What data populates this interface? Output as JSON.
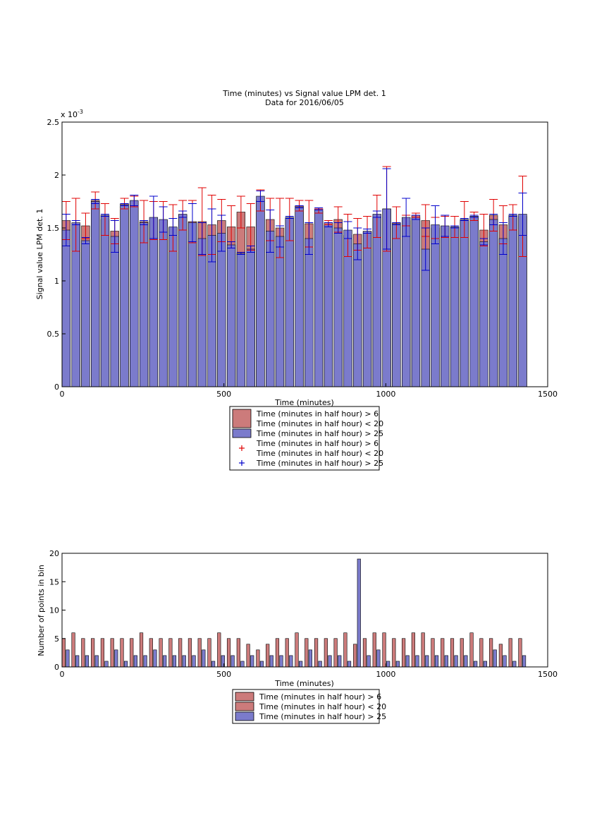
{
  "chart_data": [
    {
      "type": "bar",
      "title": "Time (minutes) vs Signal value LPM det. 1",
      "subtitle": "Data for 2016/06/05",
      "xlabel": "Time (minutes)",
      "ylabel": "Signal value LPM det. 1",
      "exponent_label": "x 10",
      "exponent_power": "-3",
      "xlim": [
        0,
        1500
      ],
      "ylim": [
        0,
        2.5
      ],
      "xticks": [
        "0",
        "500",
        "1000",
        "1500"
      ],
      "yticks": [
        "0",
        "0.5",
        "1",
        "1.5",
        "2",
        "2.5"
      ],
      "grid": false,
      "legend_position": "below",
      "colors": {
        "series1": "#cc7b7b",
        "series2": "#7b7bcc",
        "err1": "#e00000",
        "err2": "#0000cc"
      },
      "legend": [
        {
          "lines": [
            "Time (minutes in half hour) > 6",
            "Time (minutes in half hour) < 20"
          ],
          "symbol": "patch",
          "color": "#cc7b7b"
        },
        {
          "lines": [
            "Time (minutes in half hour) > 25"
          ],
          "symbol": "patch",
          "color": "#7b7bcc"
        },
        {
          "lines": [
            "Time (minutes in half hour) > 6",
            "Time (minutes in half hour) < 20"
          ],
          "symbol": "plus",
          "color": "#e00000"
        },
        {
          "lines": [
            "Time (minutes in half hour) > 25"
          ],
          "symbol": "plus",
          "color": "#0000cc"
        }
      ],
      "x": [
        0,
        30,
        60,
        90,
        120,
        150,
        180,
        210,
        240,
        270,
        300,
        330,
        360,
        390,
        420,
        450,
        480,
        510,
        540,
        570,
        600,
        630,
        660,
        690,
        720,
        750,
        780,
        810,
        840,
        870,
        900,
        930,
        960,
        990,
        1020,
        1050,
        1080,
        1110,
        1140,
        1170,
        1200,
        1230,
        1260,
        1290,
        1320,
        1350,
        1380,
        1410
      ],
      "series": [
        {
          "values": [
            1.57,
            1.53,
            1.52,
            1.76,
            1.58,
            1.47,
            1.73,
            1.75,
            1.56,
            1.57,
            1.57,
            1.5,
            1.62,
            1.56,
            1.56,
            1.53,
            1.57,
            1.51,
            1.65,
            1.51,
            1.76,
            1.58,
            1.5,
            1.58,
            1.71,
            1.54,
            1.66,
            1.55,
            1.58,
            1.43,
            1.44,
            1.46,
            1.61,
            1.68,
            1.55,
            1.57,
            1.62,
            1.57,
            1.5,
            1.51,
            1.51,
            1.58,
            1.61,
            1.48,
            1.62,
            1.53,
            1.6,
            1.61
          ],
          "err": [
            0.18,
            0.25,
            0.12,
            0.08,
            0.15,
            0.12,
            0.05,
            0.05,
            0.2,
            0.18,
            0.18,
            0.22,
            0.14,
            0.2,
            0.32,
            0.28,
            0.2,
            0.2,
            0.15,
            0.22,
            0.1,
            0.2,
            0.28,
            0.2,
            0.05,
            0.22,
            0.02,
            0.02,
            0.12,
            0.2,
            0.15,
            0.15,
            0.2,
            0.4,
            0.15,
            0.05,
            0.02,
            0.15,
            0.1,
            0.1,
            0.1,
            0.17,
            0.04,
            0.15,
            0.15,
            0.18,
            0.12,
            0.38
          ]
        },
        {
          "values": [
            1.48,
            1.55,
            1.38,
            1.75,
            1.62,
            1.42,
            1.72,
            1.76,
            1.55,
            1.6,
            1.58,
            1.51,
            1.63,
            1.55,
            1.4,
            1.43,
            1.45,
            1.34,
            1.26,
            1.3,
            1.8,
            1.47,
            1.42,
            1.6,
            1.7,
            1.4,
            1.68,
            1.53,
            1.5,
            1.48,
            1.35,
            1.47,
            1.63,
            1.68,
            1.54,
            1.6,
            1.6,
            1.3,
            1.53,
            1.52,
            1.51,
            1.58,
            1.61,
            1.37,
            1.58,
            1.4,
            1.62,
            1.63
          ],
          "err": [
            0.15,
            0.02,
            0.03,
            0.02,
            0.01,
            0.15,
            0.01,
            0.05,
            0.02,
            0.2,
            0.12,
            0.08,
            0.03,
            0.18,
            0.15,
            0.25,
            0.17,
            0.03,
            0.01,
            0.03,
            0.05,
            0.2,
            0.1,
            0.01,
            0.01,
            0.15,
            0.01,
            0.02,
            0.05,
            0.08,
            0.15,
            0.02,
            0.03,
            0.38,
            0.01,
            0.18,
            0.02,
            0.2,
            0.18,
            0.1,
            0.01,
            0.01,
            0.01,
            0.03,
            0.05,
            0.15,
            0.01,
            0.2
          ]
        }
      ]
    },
    {
      "type": "bar",
      "xlabel": "Time (minutes)",
      "ylabel": "Number of points in bin",
      "xlim": [
        0,
        1500
      ],
      "ylim": [
        0,
        20
      ],
      "xticks": [
        "0",
        "500",
        "1000",
        "1500"
      ],
      "yticks": [
        "0",
        "5",
        "10",
        "15",
        "20"
      ],
      "grid": false,
      "legend_position": "below",
      "colors": {
        "series1": "#cc7b7b",
        "series2": "#7b7bcc"
      },
      "legend": [
        {
          "lines": [
            "Time (minutes in half hour) > 6"
          ],
          "symbol": "patch",
          "color": "#cc7b7b"
        },
        {
          "lines": [
            "Time (minutes in half hour) < 20"
          ],
          "symbol": "patch",
          "color": "#cc7b7b"
        },
        {
          "lines": [
            "Time (minutes in half hour) > 25"
          ],
          "symbol": "patch",
          "color": "#7b7bcc"
        }
      ],
      "x": [
        0,
        30,
        60,
        90,
        120,
        150,
        180,
        210,
        240,
        270,
        300,
        330,
        360,
        390,
        420,
        450,
        480,
        510,
        540,
        570,
        600,
        630,
        660,
        690,
        720,
        750,
        780,
        810,
        840,
        870,
        900,
        930,
        960,
        990,
        1020,
        1050,
        1080,
        1110,
        1140,
        1170,
        1200,
        1230,
        1260,
        1290,
        1320,
        1350,
        1380,
        1410
      ],
      "series": [
        {
          "values": [
            5,
            6,
            5,
            5,
            5,
            5,
            5,
            5,
            6,
            5,
            5,
            5,
            5,
            5,
            5,
            5,
            6,
            5,
            5,
            4,
            3,
            4,
            5,
            5,
            6,
            5,
            5,
            5,
            5,
            6,
            4,
            5,
            6,
            6,
            5,
            5,
            6,
            6,
            5,
            5,
            5,
            5,
            6,
            5,
            5,
            4,
            5,
            5
          ]
        },
        {
          "values": [
            3,
            2,
            2,
            2,
            1,
            3,
            1,
            2,
            2,
            3,
            2,
            2,
            2,
            2,
            3,
            1,
            2,
            2,
            1,
            2,
            1,
            2,
            2,
            2,
            1,
            3,
            1,
            2,
            2,
            1,
            19,
            2,
            3,
            1,
            1,
            2,
            2,
            2,
            2,
            2,
            2,
            2,
            1,
            1,
            3,
            2,
            1,
            2
          ]
        }
      ]
    }
  ]
}
